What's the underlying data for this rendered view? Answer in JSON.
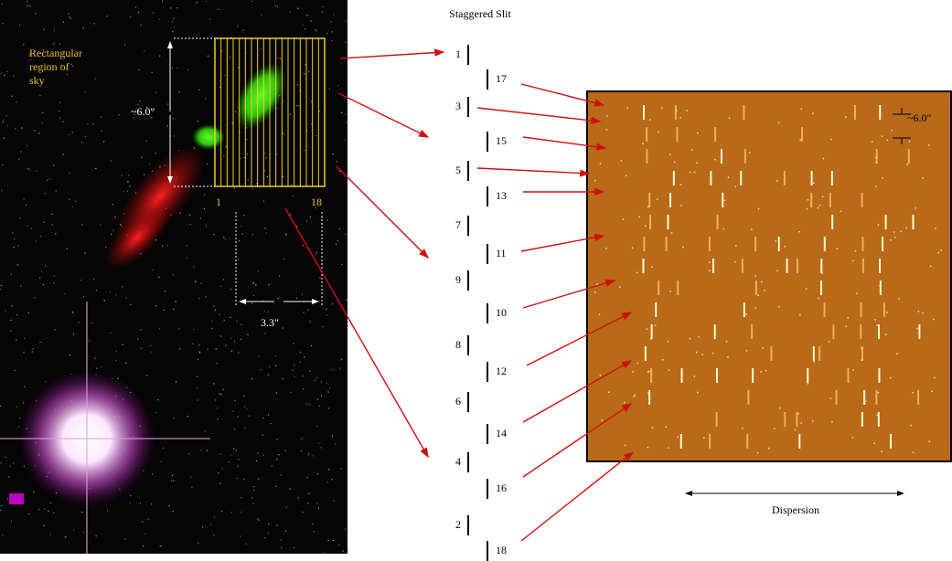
{
  "title": "Staggered Slit",
  "sky_image": {
    "label_lines": [
      "Rectangular",
      "region of",
      "sky"
    ],
    "height_label": "~6.0\"",
    "width_label": "3.3\"",
    "first_slice": "1",
    "last_slice": "18"
  },
  "slits": {
    "left": [
      "1",
      "3",
      "5",
      "7",
      "9",
      "8",
      "6",
      "4",
      "2"
    ],
    "right": [
      "17",
      "15",
      "13",
      "11",
      "10",
      "12",
      "14",
      "16",
      "18"
    ]
  },
  "spectrum": {
    "slit_height_label": "~6.0\"",
    "axis_label": "Dispersion"
  }
}
